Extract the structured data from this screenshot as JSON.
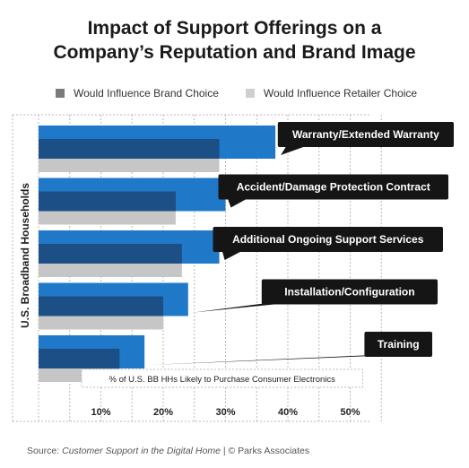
{
  "chart_data": {
    "type": "bar",
    "title": [
      "Impact of Support Offerings on a",
      "Company’s Reputation and Brand Image"
    ],
    "ylabel": "U.S. Broadband Households",
    "xlabel_box": "% of U.S. BB HHs Likely to Purchase Consumer Electronics",
    "xticks": [
      "10%",
      "20%",
      "30%",
      "40%",
      "50%"
    ],
    "xlim": [
      0,
      50
    ],
    "categories": [
      "Warranty/Extended Warranty",
      "Accident/Damage Protection Contract",
      "Additional Ongoing Support Services",
      "Installation/Configuration",
      "Training"
    ],
    "series": [
      {
        "name": "Would Influence Brand Choice",
        "values": [
          38,
          30,
          29,
          24,
          17
        ]
      },
      {
        "name": "Would Influence Retailer Choice",
        "values": [
          29,
          22,
          23,
          20,
          13
        ]
      }
    ],
    "legend_position": "top",
    "grid": true
  },
  "colors": {
    "brand_bar": "#1f78c8",
    "retailer_bar": "#c6c6c6",
    "overlap": "#1c4f86",
    "legend_brand": "#7a7a7a",
    "legend_retailer": "#cfcfcf",
    "callout": "#151515",
    "grid": "#b9b9b9"
  },
  "source": {
    "prefix": "Source: ",
    "italic": "Customer Support in the Digital Home",
    "suffix": " | © Parks Associates"
  }
}
